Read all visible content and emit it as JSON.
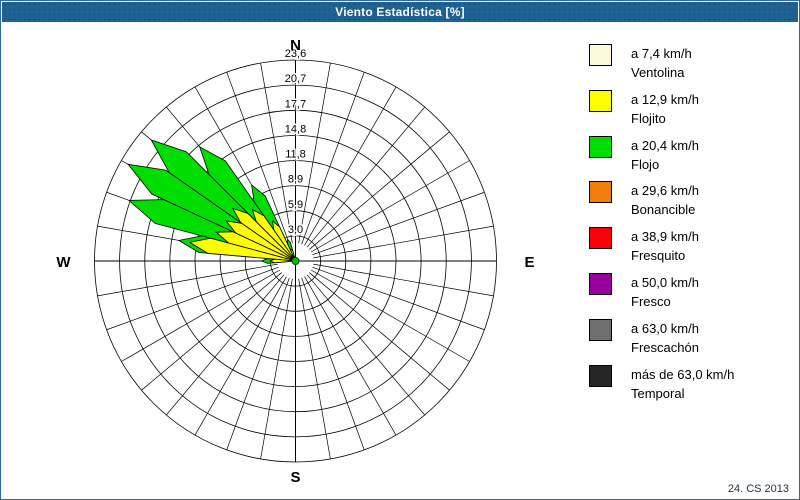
{
  "window": {
    "title": "Viento Estadística [%]",
    "footer": "24. CS 2013"
  },
  "colors": {
    "titlebar_bg": "#1f6396",
    "window_border": "#2d6ca3",
    "grid_line": "#000000",
    "background": "#ffffff"
  },
  "legend": {
    "items": [
      {
        "speed": "a 7,4 km/h",
        "name": "Ventolina",
        "color": "#FCF8DC"
      },
      {
        "speed": "a 12,9 km/h",
        "name": "Flojito",
        "color": "#FFFF00"
      },
      {
        "speed": "a 20,4 km/h",
        "name": "Flojo",
        "color": "#00DD00"
      },
      {
        "speed": "a 29,6 km/h",
        "name": "Bonancible",
        "color": "#F07D0C"
      },
      {
        "speed": "a 38,9 km/h",
        "name": "Fresquito",
        "color": "#FB0207"
      },
      {
        "speed": "a 50,0 km/h",
        "name": "Fresco",
        "color": "#97009E"
      },
      {
        "speed": "a 63,0 km/h",
        "name": "Frescachón",
        "color": "#6F6F6F"
      },
      {
        "speed": "más de 63,0 km/h",
        "name": "Temporal",
        "color": "#262626"
      }
    ]
  },
  "chart_data": {
    "type": "windrose_stacked_polar_area",
    "title": "Viento Estadística [%]",
    "units": "%",
    "max_value": 23.6,
    "sector_width_deg": 10,
    "grid": {
      "spoke_step_deg": 10,
      "rings_on": true,
      "center_hole": true
    },
    "rings": [
      {
        "label": "3,0",
        "value": 2.95
      },
      {
        "label": "5,9",
        "value": 5.9
      },
      {
        "label": "8,9",
        "value": 8.85
      },
      {
        "label": "11,8",
        "value": 11.8
      },
      {
        "label": "14,8",
        "value": 14.75
      },
      {
        "label": "17,7",
        "value": 17.7
      },
      {
        "label": "20,7",
        "value": 20.65
      },
      {
        "label": "23,6",
        "value": 23.6
      }
    ],
    "compass_labels": [
      "N",
      "E",
      "S",
      "W"
    ],
    "series": [
      {
        "name": "Ventolina",
        "color": "#FCF8DC"
      },
      {
        "name": "Flojito",
        "color": "#FFFF00"
      },
      {
        "name": "Flojo",
        "color": "#00DD00"
      }
    ],
    "note": "Values in % by 10° compass sector; all directions not listed are 0",
    "data": [
      {
        "dir_deg": 270,
        "ventolina": 0.4,
        "flojito": 2.6,
        "flojo": 1.0
      },
      {
        "dir_deg": 280,
        "ventolina": 0.4,
        "flojito": 12.2,
        "flojo": 1.3
      },
      {
        "dir_deg": 290,
        "ventolina": 0.4,
        "flojito": 9.5,
        "flojo": 10.9
      },
      {
        "dir_deg": 300,
        "ventolina": 0.4,
        "flojito": 9.0,
        "flojo": 13.3
      },
      {
        "dir_deg": 310,
        "ventolina": 0.4,
        "flojito": 9.2,
        "flojo": 12.5
      },
      {
        "dir_deg": 320,
        "ventolina": 0.4,
        "flojito": 7.5,
        "flojo": 9.6
      },
      {
        "dir_deg": 330,
        "ventolina": 0.3,
        "flojito": 5.1,
        "flojo": 4.9
      },
      {
        "dir_deg": 340,
        "ventolina": 0.2,
        "flojito": 1.3,
        "flojo": 1.2
      }
    ]
  }
}
